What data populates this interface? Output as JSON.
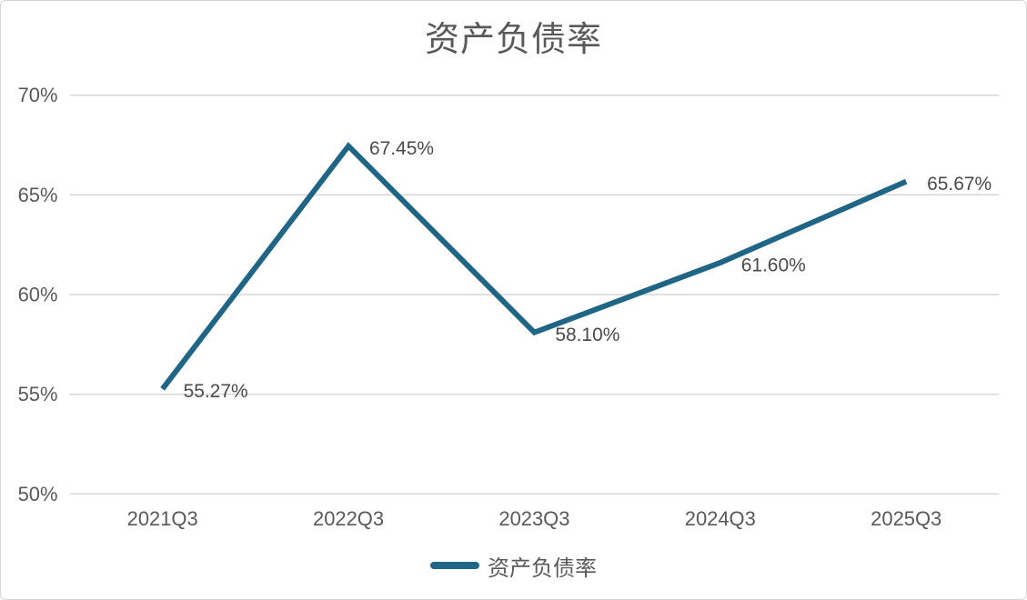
{
  "colors": {
    "line": "#1F6586",
    "grid": "#D9D9D9",
    "axis_text": "#595959",
    "label_text": "#4A4A4A",
    "title_text": "#595959",
    "border": "#D5D5D5"
  },
  "legend": {
    "label": "资产负债率"
  },
  "chart_data": {
    "type": "line",
    "title": "资产负债率",
    "categories": [
      "2021Q3",
      "2022Q3",
      "2023Q3",
      "2024Q3",
      "2025Q3"
    ],
    "series": [
      {
        "name": "资产负债率",
        "values": [
          55.27,
          67.45,
          58.1,
          61.6,
          65.67
        ]
      }
    ],
    "data_labels": [
      "55.27%",
      "67.45%",
      "58.10%",
      "61.60%",
      "65.67%"
    ],
    "xlabel": "",
    "ylabel": "",
    "ylim": [
      50,
      70
    ],
    "yticks": [
      50,
      55,
      60,
      65,
      70
    ],
    "ytick_labels": [
      "50%",
      "55%",
      "60%",
      "65%",
      "70%"
    ],
    "grid": true,
    "legend_position": "bottom"
  }
}
